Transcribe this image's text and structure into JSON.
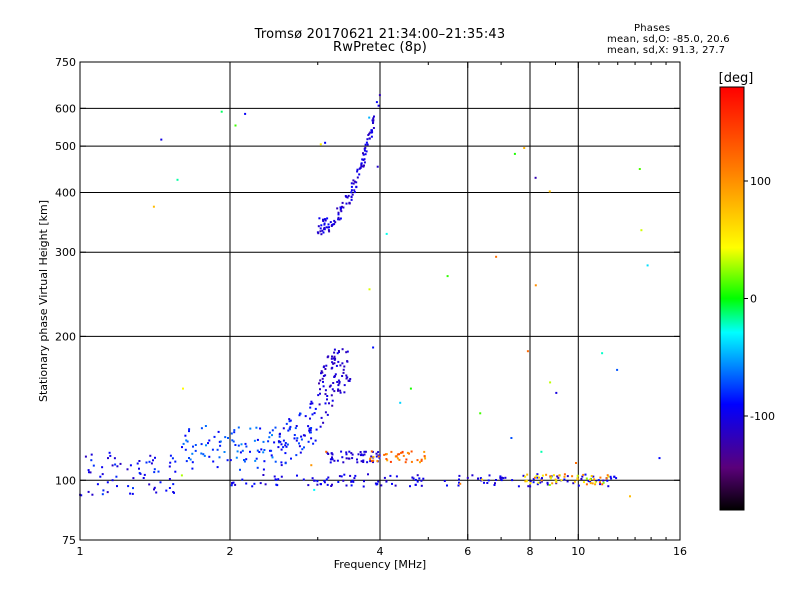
{
  "header": {
    "title_line1": "Tromsø 20170621 21:34:00–21:35:43",
    "title_line2": "RwPretec (8p)"
  },
  "phase_info": {
    "heading": "Phases",
    "line_o": "mean, sd,O: -85.0, 20.6",
    "line_x": "mean, sd,X:  91.3, 27.7"
  },
  "chart_data": {
    "type": "scatter",
    "title": "Tromsø 20170621 21:34:00–21:35:43",
    "subtitle": "RwPretec (8p)",
    "xlabel": "Frequency [MHz]",
    "ylabel": "Stationary phase Virtual Height [km]",
    "x_scale": "log",
    "y_scale": "log",
    "xlim": [
      1,
      16
    ],
    "ylim": [
      75,
      750
    ],
    "x_ticks": [
      1,
      2,
      4,
      6,
      8,
      10,
      16
    ],
    "y_ticks": [
      75,
      100,
      200,
      300,
      400,
      500,
      600,
      750
    ],
    "grid": true,
    "colorbar": {
      "label": "[deg]",
      "range": [
        -180,
        180
      ],
      "ticks": [
        100,
        0,
        -100
      ]
    },
    "clusters": [
      {
        "name": "E-layer trace",
        "x_range": [
          2.0,
          12.0
        ],
        "y_range": [
          97,
          103
        ],
        "phase_range": [
          -115,
          -85
        ],
        "count": 150
      },
      {
        "name": "E-layer trace (high freq)",
        "x_range": [
          7.8,
          11.5
        ],
        "y_range": [
          98,
          103
        ],
        "phase_range": [
          20,
          130
        ],
        "count": 50
      },
      {
        "name": "Low band (F1 start)",
        "x_range": [
          1.0,
          1.6
        ],
        "y_range": [
          93,
          115
        ],
        "phase_range": [
          -115,
          -75
        ],
        "count": 70
      },
      {
        "name": "Low band (F1 mid)",
        "x_range": [
          1.6,
          2.5
        ],
        "y_range": [
          105,
          130
        ],
        "phase_range": [
          -95,
          -55
        ],
        "count": 90
      },
      {
        "name": "F1 rising",
        "x_range": [
          2.5,
          3.0
        ],
        "y_range": [
          105,
          150
        ],
        "phase_range": [
          -105,
          -70
        ],
        "count": 70
      },
      {
        "name": "F1 cusp",
        "x_range": [
          3.0,
          3.3
        ],
        "y_range": [
          125,
          200
        ],
        "phase_range": [
          -125,
          -95
        ],
        "count": 50
      },
      {
        "name": "F1 top",
        "x_range": [
          3.2,
          3.5
        ],
        "y_range": [
          150,
          190
        ],
        "phase_range": [
          -120,
          -100
        ],
        "count": 40
      },
      {
        "name": "Band ~112 km",
        "x_range": [
          3.1,
          4.0
        ],
        "y_range": [
          109,
          115
        ],
        "phase_range": [
          -115,
          -95
        ],
        "count": 50
      },
      {
        "name": "Band ~112 km (high phase)",
        "x_range": [
          3.8,
          5.0
        ],
        "y_range": [
          109,
          115
        ],
        "phase_range": [
          80,
          150
        ],
        "count": 40
      },
      {
        "name": "F2 trace",
        "x_range": [
          3.0,
          4.0
        ],
        "y_range": [
          340,
          640
        ],
        "phase_range": [
          -120,
          -90
        ],
        "count": 120
      },
      {
        "name": "Isolated echoes",
        "x_range": [
          1.3,
          15.0
        ],
        "y_range": [
          90,
          630
        ],
        "phase_range": [
          -130,
          130
        ],
        "count": 45
      }
    ]
  }
}
